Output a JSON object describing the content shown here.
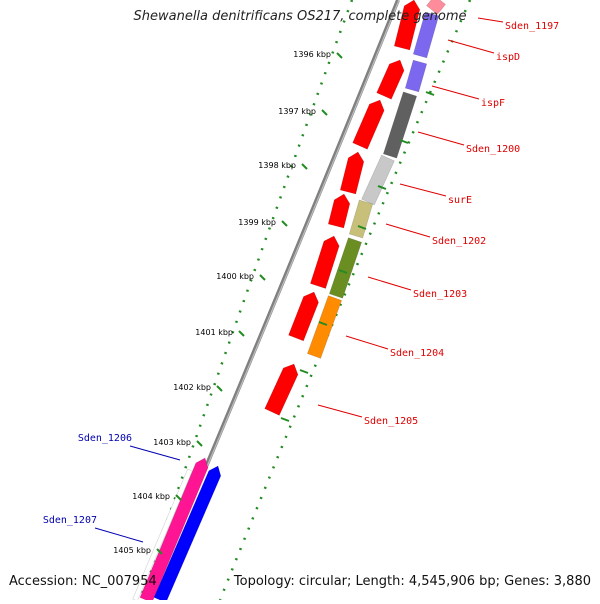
{
  "title": "Shewanella denitrificans OS217, complete genome",
  "footer": {
    "accession": "Accession: NC_007954",
    "summary": "Topology: circular; Length: 4,545,906 bp; Genes: 3,880"
  },
  "ticks": [
    "1396 kbp",
    "1397 kbp",
    "1398 kbp",
    "1399 kbp",
    "1400 kbp",
    "1401 kbp",
    "1402 kbp",
    "1403 kbp",
    "1404 kbp",
    "1405 kbp"
  ],
  "genes_forward": [
    {
      "name": "Sden_1197",
      "color": "#ff8c9a"
    },
    {
      "name": "ispD",
      "color": "#7b68ee"
    },
    {
      "name": "ispF",
      "color": "#7b68ee"
    },
    {
      "name": "Sden_1200",
      "color": "#606060"
    },
    {
      "name": "surE",
      "color": "#c8c8c8"
    },
    {
      "name": "Sden_1202",
      "color": "#c8c07a"
    },
    {
      "name": "Sden_1203",
      "color": "#6b8e23"
    },
    {
      "name": "Sden_1204",
      "color": "#ff8c00"
    },
    {
      "name": "Sden_1205",
      "color": "#ff0000"
    }
  ],
  "genes_reverse": [
    {
      "name": "Sden_1206",
      "color": "#0000ff"
    },
    {
      "name": "Sden_1207",
      "color": "#0000ff"
    }
  ],
  "colors": {
    "cds_red": "#ff0000",
    "tick_dots": "#228b22",
    "backbone": "#808080",
    "magenta": "#ff1493"
  }
}
